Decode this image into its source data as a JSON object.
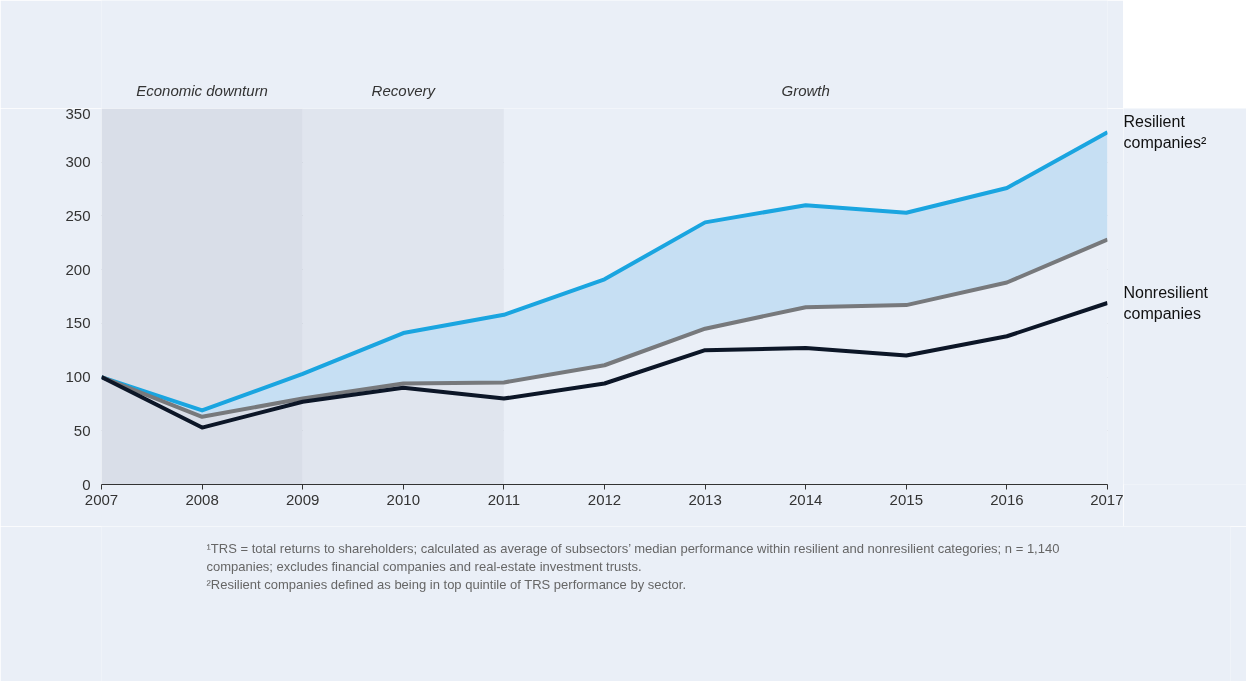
{
  "chart_data": {
    "type": "line",
    "x": [
      2007,
      2008,
      2009,
      2010,
      2011,
      2012,
      2013,
      2014,
      2015,
      2016,
      2017
    ],
    "series": [
      {
        "name": "Resilient companies²",
        "color": "#1aa5e0",
        "values": [
          100,
          69,
          103,
          141,
          158,
          191,
          244,
          260,
          253,
          276,
          328
        ],
        "lower": [
          100,
          63,
          80,
          94,
          95,
          111,
          145,
          165,
          167,
          188,
          228
        ],
        "upper": [
          100,
          69,
          103,
          141,
          158,
          191,
          244,
          260,
          253,
          276,
          328
        ]
      },
      {
        "color": "#77797c",
        "values": [
          100,
          63,
          80,
          94,
          95,
          111,
          145,
          165,
          167,
          188,
          228
        ]
      },
      {
        "name": "Nonresilient companies",
        "color": "#0c1627",
        "values": [
          100,
          53,
          77,
          90,
          80,
          94,
          125,
          127,
          120,
          138,
          169
        ]
      }
    ],
    "xlim": [
      2007,
      2017
    ],
    "xticks": [
      2007,
      2008,
      2009,
      2010,
      2011,
      2012,
      2013,
      2014,
      2015,
      2016,
      2017
    ],
    "ylim": [
      0,
      350
    ],
    "yticks": [
      0,
      50,
      100,
      150,
      200,
      250,
      300,
      350
    ],
    "grid": "y",
    "marker": "none",
    "line_style": "solid",
    "bands": [
      {
        "axis": "x",
        "from": 2007,
        "to": 2009,
        "label": "Economic downturn",
        "color": "#d9dee8"
      },
      {
        "axis": "x",
        "from": 2009,
        "to": 2011,
        "label": "Recovery",
        "color": "#e0e5ee"
      },
      {
        "axis": "x",
        "from": 2011,
        "to": 2017,
        "label": "Growth",
        "color": "#eaeff7"
      }
    ],
    "annotations": [
      "¹TRS = total returns to shareholders; calculated as average of subsectors’ median performance within resilient and nonresilient categories; n = 1,140 companies; excludes financial companies and real-estate investment trusts.",
      "²Resilient companies defined as being in top quintile of TRS performance by sector."
    ]
  }
}
